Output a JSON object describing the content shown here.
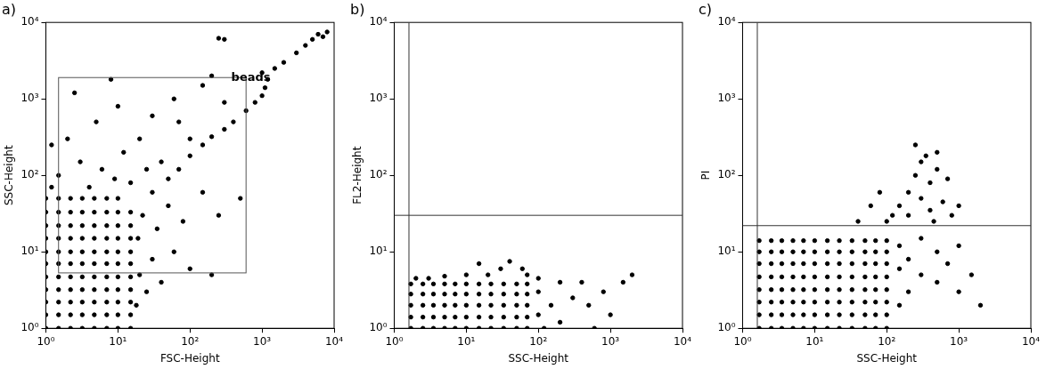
{
  "chart_data": [
    {
      "type": "scatter",
      "title": "a)",
      "x_label": "FSC-Height",
      "y_label": "SSC-Height",
      "log": true,
      "grid": false,
      "xlim": [
        1,
        10000
      ],
      "ylim": [
        1,
        10000
      ],
      "xticks": [
        {
          "value": 1,
          "label": "10⁰"
        },
        {
          "value": 10,
          "label": "10¹"
        },
        {
          "value": 100,
          "label": "10²"
        },
        {
          "value": 1000,
          "label": "10³"
        },
        {
          "value": 10000,
          "label": "10⁴"
        }
      ],
      "yticks": [
        {
          "value": 1,
          "label": "10⁰"
        },
        {
          "value": 10,
          "label": "10¹"
        },
        {
          "value": 100,
          "label": "10²"
        },
        {
          "value": 1000,
          "label": "10³"
        },
        {
          "value": 10000,
          "label": "10⁴"
        }
      ],
      "gate": {
        "x": [
          1.5,
          600
        ],
        "y": [
          5.3,
          1900
        ]
      },
      "annotations": [
        {
          "text": "beads",
          "x": 700,
          "y": 1900
        }
      ],
      "series": [
        {
          "color": "#000000",
          "marker": "circle",
          "x": [
            1,
            1.5,
            2.2,
            3.2,
            4.7,
            7,
            10,
            15,
            1,
            1.5,
            2.2,
            3.2,
            4.7,
            7,
            10,
            15,
            1,
            1.5,
            2.2,
            3.2,
            4.7,
            7,
            10,
            15,
            1,
            1.5,
            2.2,
            3.2,
            4.7,
            7,
            10,
            15,
            1,
            1.5,
            2.2,
            3.2,
            4.7,
            7,
            10,
            15,
            1,
            1.5,
            2.2,
            3.2,
            4.7,
            7,
            10,
            15,
            1,
            1.5,
            2.2,
            3.2,
            4.7,
            7,
            10,
            15,
            1,
            1.5,
            2.2,
            3.2,
            4.7,
            7,
            10,
            15,
            1,
            1.5,
            2.2,
            3.2,
            4.7,
            7,
            10,
            15,
            1,
            1.5,
            2.2,
            3.2,
            4.7,
            7,
            10,
            15,
            1,
            1.5,
            2.2,
            3.2,
            4.7,
            7,
            10,
            18,
            20,
            25,
            30,
            40,
            60,
            100,
            200,
            19,
            22,
            35,
            50,
            80,
            150,
            250,
            1.5,
            3,
            6,
            12,
            20,
            40,
            2,
            5,
            10,
            30,
            60,
            100,
            150,
            300,
            8,
            1.2,
            2.5,
            15,
            9,
            4,
            1.2,
            25,
            70,
            200,
            500,
            30,
            50,
            70,
            100,
            150,
            200,
            300,
            400,
            600,
            800,
            1000,
            1100,
            1200,
            1000,
            1500,
            2000,
            3000,
            4000,
            5000,
            6000,
            7000,
            8000,
            300,
            250
          ],
          "values": [
            1,
            1,
            1,
            1,
            1,
            1,
            1,
            1,
            1.5,
            1.5,
            1.5,
            1.5,
            1.5,
            1.5,
            1.5,
            1.5,
            2.2,
            2.2,
            2.2,
            2.2,
            2.2,
            2.2,
            2.2,
            2.2,
            3.2,
            3.2,
            3.2,
            3.2,
            3.2,
            3.2,
            3.2,
            3.2,
            4.7,
            4.7,
            4.7,
            4.7,
            4.7,
            4.7,
            4.7,
            4.7,
            7,
            7,
            7,
            7,
            7,
            7,
            7,
            7,
            10,
            10,
            10,
            10,
            10,
            10,
            10,
            10,
            15,
            15,
            15,
            15,
            15,
            15,
            15,
            15,
            22,
            22,
            22,
            22,
            22,
            22,
            22,
            22,
            33,
            33,
            33,
            33,
            33,
            33,
            33,
            33,
            50,
            50,
            50,
            50,
            50,
            50,
            50,
            2,
            5,
            3,
            8,
            4,
            10,
            6,
            5,
            15,
            30,
            20,
            40,
            25,
            60,
            30,
            100,
            150,
            120,
            200,
            300,
            150,
            300,
            500,
            800,
            600,
            1000,
            300,
            1500,
            900,
            1800,
            250,
            1200,
            80,
            90,
            70,
            70,
            120,
            500,
            2000,
            50,
            60,
            90,
            120,
            180,
            250,
            320,
            400,
            500,
            700,
            900,
            1100,
            1400,
            1800,
            2200,
            2500,
            3000,
            4000,
            5000,
            6000,
            7000,
            6500,
            7500,
            6000,
            6200
          ]
        }
      ]
    },
    {
      "type": "scatter",
      "title": "b)",
      "x_label": "SSC-Height",
      "y_label": "FL2-Height",
      "log": true,
      "grid": false,
      "xlim": [
        1,
        10000
      ],
      "ylim": [
        1,
        10000
      ],
      "xticks": [
        {
          "value": 1,
          "label": "10⁰"
        },
        {
          "value": 10,
          "label": "10¹"
        },
        {
          "value": 100,
          "label": "10²"
        },
        {
          "value": 1000,
          "label": "10³"
        },
        {
          "value": 10000,
          "label": "10⁴"
        }
      ],
      "yticks": [
        {
          "value": 1,
          "label": "10⁰"
        },
        {
          "value": 10,
          "label": "10¹"
        },
        {
          "value": 100,
          "label": "10²"
        },
        {
          "value": 1000,
          "label": "10³"
        },
        {
          "value": 10000,
          "label": "10⁴"
        }
      ],
      "quadrant": {
        "x": 1.6,
        "y": 30
      },
      "series": [
        {
          "color": "#000000",
          "marker": "circle",
          "x": [
            1.7,
            2.5,
            3.5,
            5,
            7,
            10,
            15,
            22,
            33,
            50,
            70,
            1.7,
            2.5,
            3.5,
            5,
            7,
            10,
            15,
            22,
            33,
            50,
            70,
            1.7,
            2.5,
            3.5,
            5,
            7,
            10,
            15,
            22,
            33,
            50,
            70,
            1.7,
            2.5,
            3.5,
            5,
            7,
            10,
            15,
            22,
            33,
            50,
            70,
            1.7,
            2.5,
            3.5,
            5,
            7,
            10,
            15,
            22,
            33,
            50,
            70,
            100,
            100,
            150,
            200,
            300,
            500,
            800,
            1000,
            1500,
            2000,
            100,
            20,
            30,
            15,
            40,
            60,
            200,
            70,
            10,
            5,
            3,
            2,
            400,
            120,
            600
          ],
          "values": [
            1,
            1,
            1,
            1,
            1,
            1,
            1,
            1,
            1,
            1,
            1,
            1.4,
            1.4,
            1.4,
            1.4,
            1.4,
            1.4,
            1.4,
            1.4,
            1.4,
            1.4,
            1.4,
            2,
            2,
            2,
            2,
            2,
            2,
            2,
            2,
            2,
            2,
            2,
            2.8,
            2.8,
            2.8,
            2.8,
            2.8,
            2.8,
            2.8,
            2.8,
            2.8,
            2.8,
            2.8,
            3.8,
            3.8,
            3.8,
            3.8,
            3.8,
            3.8,
            3.8,
            3.8,
            3.8,
            3.8,
            3.8,
            1.5,
            3,
            2,
            1.2,
            2.5,
            2,
            3,
            1.5,
            4,
            5,
            4.5,
            5,
            6,
            7,
            7.5,
            6,
            4,
            5,
            5,
            4.8,
            4.5,
            4.5,
            4,
            1,
            1
          ]
        }
      ]
    },
    {
      "type": "scatter",
      "title": "c)",
      "x_label": "SSC-Height",
      "y_label": "PI",
      "log": true,
      "grid": false,
      "xlim": [
        1,
        10000
      ],
      "ylim": [
        1,
        10000
      ],
      "xticks": [
        {
          "value": 1,
          "label": "10⁰"
        },
        {
          "value": 10,
          "label": "10¹"
        },
        {
          "value": 100,
          "label": "10²"
        },
        {
          "value": 1000,
          "label": "10³"
        },
        {
          "value": 10000,
          "label": "10⁴"
        }
      ],
      "yticks": [
        {
          "value": 1,
          "label": "10⁰"
        },
        {
          "value": 10,
          "label": "10¹"
        },
        {
          "value": 100,
          "label": "10²"
        },
        {
          "value": 1000,
          "label": "10³"
        },
        {
          "value": 10000,
          "label": "10⁴"
        }
      ],
      "quadrant": {
        "x": 1.6,
        "y": 22
      },
      "series": [
        {
          "color": "#000000",
          "marker": "circle",
          "x": [
            1.7,
            2.5,
            3.5,
            5,
            7,
            10,
            15,
            22,
            33,
            50,
            70,
            100,
            1.7,
            2.5,
            3.5,
            5,
            7,
            10,
            15,
            22,
            33,
            50,
            70,
            100,
            1.7,
            2.5,
            3.5,
            5,
            7,
            10,
            15,
            22,
            33,
            50,
            70,
            100,
            1.7,
            2.5,
            3.5,
            5,
            7,
            10,
            15,
            22,
            33,
            50,
            70,
            100,
            1.7,
            2.5,
            3.5,
            5,
            7,
            10,
            15,
            22,
            33,
            50,
            70,
            100,
            1.7,
            2.5,
            3.5,
            5,
            7,
            10,
            15,
            22,
            33,
            50,
            70,
            100,
            1.7,
            2.5,
            3.5,
            5,
            7,
            10,
            15,
            22,
            33,
            50,
            70,
            100,
            1.7,
            2.5,
            3.5,
            5,
            7,
            10,
            15,
            22,
            33,
            50,
            70,
            100,
            150,
            150,
            150,
            200,
            200,
            300,
            300,
            500,
            500,
            700,
            1000,
            1000,
            1500,
            2000,
            100,
            150,
            200,
            200,
            250,
            300,
            300,
            400,
            400,
            500,
            500,
            600,
            700,
            800,
            60,
            80,
            1000,
            350,
            250,
            120,
            40,
            450
          ],
          "values": [
            1,
            1,
            1,
            1,
            1,
            1,
            1,
            1,
            1,
            1,
            1,
            1,
            1.5,
            1.5,
            1.5,
            1.5,
            1.5,
            1.5,
            1.5,
            1.5,
            1.5,
            1.5,
            1.5,
            1.5,
            2.2,
            2.2,
            2.2,
            2.2,
            2.2,
            2.2,
            2.2,
            2.2,
            2.2,
            2.2,
            2.2,
            2.2,
            3.2,
            3.2,
            3.2,
            3.2,
            3.2,
            3.2,
            3.2,
            3.2,
            3.2,
            3.2,
            3.2,
            3.2,
            4.7,
            4.7,
            4.7,
            4.7,
            4.7,
            4.7,
            4.7,
            4.7,
            4.7,
            4.7,
            4.7,
            4.7,
            7,
            7,
            7,
            7,
            7,
            7,
            7,
            7,
            7,
            7,
            7,
            7,
            10,
            10,
            10,
            10,
            10,
            10,
            10,
            10,
            10,
            10,
            10,
            10,
            14,
            14,
            14,
            14,
            14,
            14,
            14,
            14,
            14,
            14,
            14,
            14,
            2,
            6,
            12,
            3,
            8,
            5,
            15,
            4,
            10,
            7,
            3,
            12,
            5,
            2,
            25,
            40,
            30,
            60,
            100,
            50,
            150,
            35,
            80,
            120,
            200,
            45,
            90,
            30,
            40,
            60,
            40,
            180,
            250,
            30,
            25,
            25
          ]
        }
      ]
    }
  ]
}
